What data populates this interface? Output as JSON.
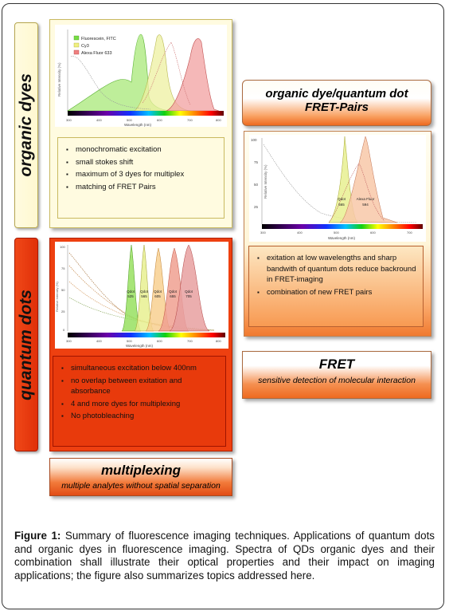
{
  "organic_dyes": {
    "tab_label": "organic dyes",
    "legend": [
      "Fluorescein, FITC",
      "Cy3",
      "Alexa Fluor 633"
    ],
    "legend_colors": [
      "#77dd44",
      "#f0f080",
      "#f08080"
    ],
    "y_label": "Relative Intensity (%)",
    "x_label": "Wavelength (nm)",
    "x_ticks": [
      "300",
      "400",
      "500",
      "600",
      "700",
      "800"
    ],
    "bullets": [
      "monochromatic excitation",
      "small stokes shift",
      "maximum of 3 dyes for multiplex",
      "matching of FRET Pairs"
    ]
  },
  "quantum_dots": {
    "tab_label": "quantum dots",
    "y_ticks": [
      "100",
      "75",
      "50",
      "25",
      "0"
    ],
    "y_label": "Relative Intensity (%)",
    "x_label": "Wavelength (nm)",
    "x_ticks": [
      "300",
      "400",
      "500",
      "600",
      "700",
      "800"
    ],
    "peak_labels": [
      {
        "name": "Qdot",
        "value": "525"
      },
      {
        "name": "Qdot",
        "value": "565"
      },
      {
        "name": "Qdot",
        "value": "605"
      },
      {
        "name": "Qdot",
        "value": "655"
      },
      {
        "name": "Qdot",
        "value": "705"
      }
    ],
    "bullets": [
      "simultaneous excitation below 400nm",
      "no overlap between exitation and absorbance",
      "4  and more dyes for multiplexing",
      "No photobleaching"
    ]
  },
  "fret_pairs": {
    "title_line1": "organic dye/quantum dot",
    "title_line2": "FRET-Pairs",
    "y_ticks": [
      "100",
      "75",
      "50",
      "25"
    ],
    "y_label": "Relative Intensity (%)",
    "x_label": "Wavelength (nm)",
    "x_ticks": [
      "300",
      "400",
      "500",
      "600",
      "700"
    ],
    "peak_labels": [
      {
        "name": "Qdot",
        "value": "565"
      },
      {
        "name": "Alexa Fluor",
        "value": "594"
      }
    ],
    "bullets": [
      "exitation at low wavelengths and sharp bandwith of quantum dots reduce backround in FRET-imaging",
      "combination of new FRET pairs"
    ]
  },
  "fret": {
    "title": "FRET",
    "subtitle": "sensitive detection of molecular interaction"
  },
  "multiplexing": {
    "title": "multiplexing",
    "subtitle": "multiple analytes without spatial separation"
  },
  "caption": {
    "label": "Figure 1:",
    "text": " Summary of fluorescence imaging techniques. Applications of quantum dots and organic dyes in fluorescence imaging. Spectra of QDs organic dyes and their combination shall illustrate their optical properties and their impact on imaging applications; the figure also summarizes topics addressed here."
  },
  "colors": {
    "qd_red": "#ee4010",
    "organic_yellow": "#fffbe0",
    "fret_orange": "#ee6a20"
  }
}
